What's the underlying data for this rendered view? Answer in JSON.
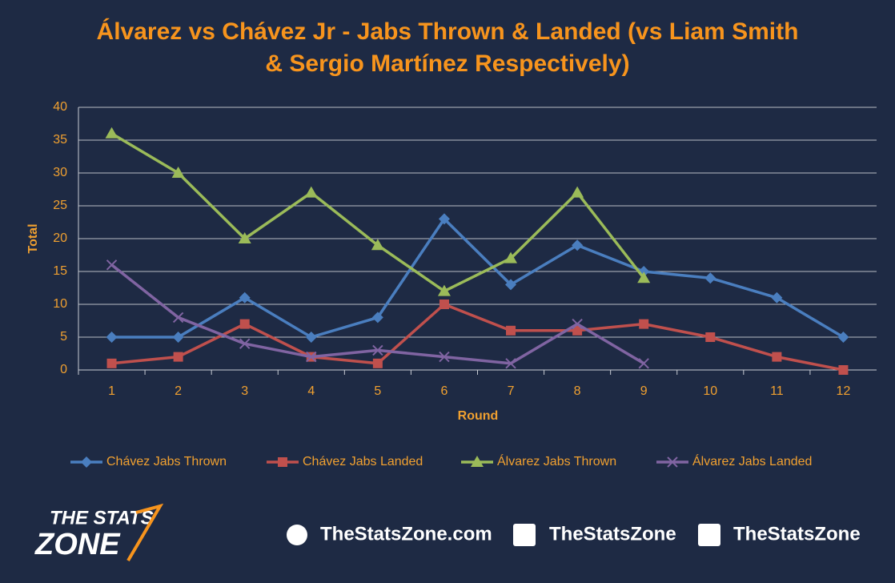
{
  "chart_data": {
    "type": "line",
    "title": "Álvarez vs Chávez Jr - Jabs Thrown & Landed (vs Liam Smith & Sergio Martínez Respectively)",
    "x_label": "Round",
    "y_label": "Total",
    "categories": [
      "1",
      "2",
      "3",
      "4",
      "5",
      "6",
      "7",
      "8",
      "9",
      "10",
      "11",
      "12"
    ],
    "series": [
      {
        "name": "Chávez Jabs Thrown",
        "color": "#4a7ebf",
        "marker": "diamond",
        "values": [
          5,
          5,
          11,
          5,
          8,
          23,
          13,
          19,
          15,
          14,
          11,
          5
        ]
      },
      {
        "name": "Chávez Jabs Landed",
        "color": "#c0504d",
        "marker": "square",
        "values": [
          1,
          2,
          7,
          2,
          1,
          10,
          6,
          6,
          7,
          5,
          2,
          0
        ]
      },
      {
        "name": "Álvarez Jabs Thrown",
        "color": "#9bbb59",
        "marker": "triangle",
        "values": [
          36,
          30,
          20,
          27,
          19,
          12,
          17,
          27,
          14,
          null,
          null,
          null
        ]
      },
      {
        "name": "Álvarez Jabs Landed",
        "color": "#8064a2",
        "marker": "x",
        "values": [
          16,
          8,
          4,
          2,
          3,
          2,
          1,
          7,
          1,
          null,
          null,
          null
        ]
      }
    ],
    "ylim": [
      0,
      40
    ],
    "yticks": [
      0,
      5,
      10,
      15,
      20,
      25,
      30,
      35,
      40
    ],
    "grid": true,
    "legend": "bottom"
  },
  "footer": {
    "logo_top": "THE STATS",
    "logo_bottom": "ZONE",
    "website": "TheStatsZone.com",
    "facebook": "TheStatsZone",
    "twitter": "TheStatsZone"
  }
}
